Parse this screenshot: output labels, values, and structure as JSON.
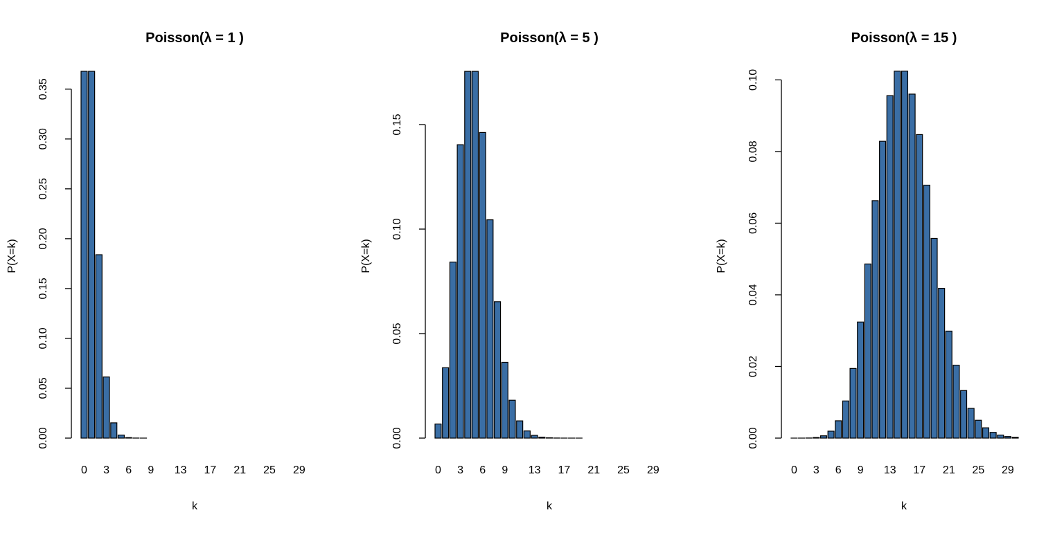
{
  "bar_fill": "#3A6EA5",
  "bar_stroke": "#000000",
  "chart_data": [
    {
      "type": "bar",
      "title": "Poisson(λ = 1 )",
      "xlabel": "k",
      "ylabel": "P(X=k)",
      "categories": [
        0,
        1,
        2,
        3,
        4,
        5,
        6,
        7,
        8,
        9,
        10,
        11,
        12,
        13,
        14,
        15,
        16,
        17,
        18,
        19,
        20,
        21,
        22,
        23,
        24,
        25,
        26,
        27,
        28,
        29,
        30
      ],
      "x_tick_labels": [
        "0",
        "3",
        "6",
        "9",
        "13",
        "17",
        "21",
        "25",
        "29"
      ],
      "y_ticks": [
        "0.00",
        "0.05",
        "0.10",
        "0.15",
        "0.20",
        "0.25",
        "0.30",
        "0.35"
      ],
      "ylim": [
        0,
        0.3679
      ],
      "values": [
        0.36788,
        0.36788,
        0.18394,
        0.06131,
        0.01533,
        0.00307,
        0.00051,
        7e-05,
        1e-05,
        0,
        0,
        0,
        0,
        0,
        0,
        0,
        0,
        0,
        0,
        0,
        0,
        0,
        0,
        0,
        0,
        0,
        0,
        0,
        0,
        0,
        0
      ]
    },
    {
      "type": "bar",
      "title": "Poisson(λ = 5 )",
      "xlabel": "k",
      "ylabel": "P(X=k)",
      "categories": [
        0,
        1,
        2,
        3,
        4,
        5,
        6,
        7,
        8,
        9,
        10,
        11,
        12,
        13,
        14,
        15,
        16,
        17,
        18,
        19,
        20,
        21,
        22,
        23,
        24,
        25,
        26,
        27,
        28,
        29,
        30
      ],
      "x_tick_labels": [
        "0",
        "3",
        "6",
        "9",
        "13",
        "17",
        "21",
        "25",
        "29"
      ],
      "y_ticks": [
        "0.00",
        "0.05",
        "0.10",
        "0.15"
      ],
      "ylim": [
        0,
        0.1755
      ],
      "values": [
        0.006738,
        0.03369,
        0.084224,
        0.140374,
        0.175467,
        0.175467,
        0.146223,
        0.104445,
        0.065278,
        0.036266,
        0.018133,
        0.008242,
        0.003434,
        0.001321,
        0.000472,
        0.000157,
        4.9e-05,
        1.4e-05,
        4e-06,
        1e-06,
        0,
        0,
        0,
        0,
        0,
        0,
        0,
        0,
        0,
        0,
        0
      ]
    },
    {
      "type": "bar",
      "title": "Poisson(λ = 15 )",
      "xlabel": "k",
      "ylabel": "P(X=k)",
      "categories": [
        0,
        1,
        2,
        3,
        4,
        5,
        6,
        7,
        8,
        9,
        10,
        11,
        12,
        13,
        14,
        15,
        16,
        17,
        18,
        19,
        20,
        21,
        22,
        23,
        24,
        25,
        26,
        27,
        28,
        29,
        30
      ],
      "x_tick_labels": [
        "0",
        "3",
        "6",
        "9",
        "13",
        "17",
        "21",
        "25",
        "29"
      ],
      "y_ticks": [
        "0.00",
        "0.02",
        "0.04",
        "0.06",
        "0.08",
        "0.10"
      ],
      "ylim": [
        0,
        0.1024
      ],
      "values": [
        3e-07,
        4.6e-06,
        3.44e-05,
        0.000172,
        0.000645,
        0.001936,
        0.004839,
        0.01037,
        0.019444,
        0.032407,
        0.048611,
        0.066287,
        0.082859,
        0.095607,
        0.102436,
        0.102436,
        0.096034,
        0.084736,
        0.070613,
        0.055747,
        0.04181,
        0.029865,
        0.020362,
        0.01328,
        0.0083,
        0.00498,
        0.002873,
        0.001596,
        0.000855,
        0.000442,
        0.000221
      ]
    }
  ]
}
